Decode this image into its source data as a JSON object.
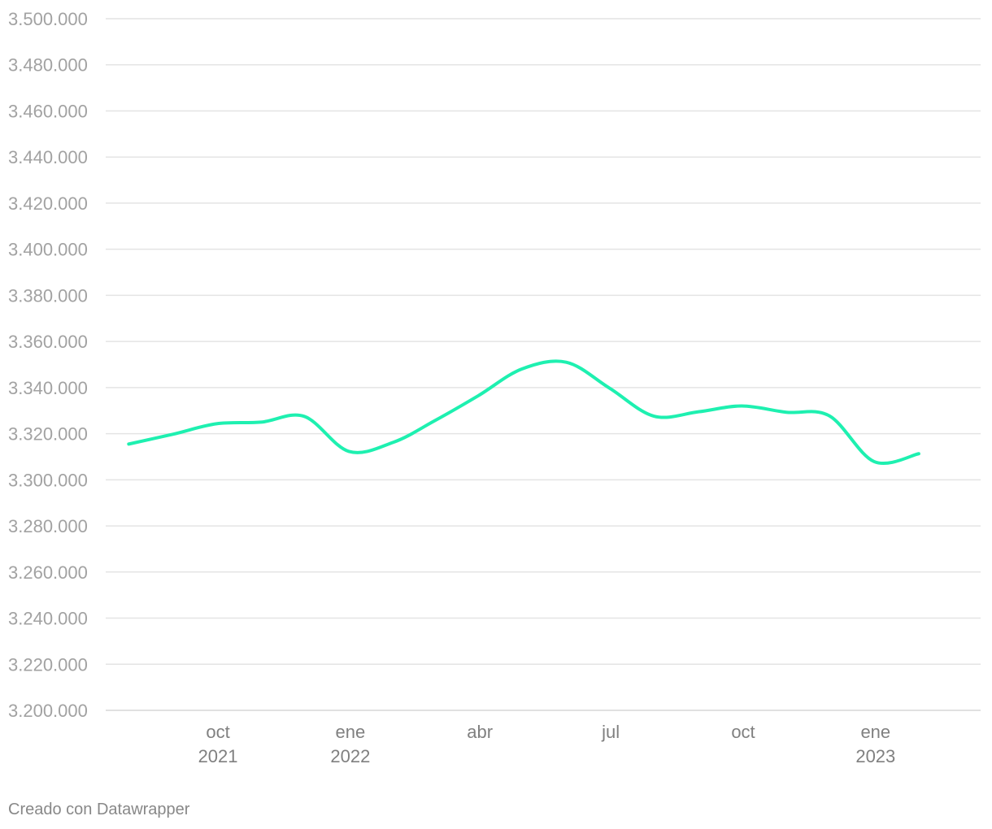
{
  "chart_data": {
    "type": "line",
    "title": "",
    "xlabel": "",
    "ylabel": "",
    "y_ticks": [
      "3.200.000",
      "3.220.000",
      "3.240.000",
      "3.260.000",
      "3.280.000",
      "3.300.000",
      "3.320.000",
      "3.340.000",
      "3.360.000",
      "3.380.000",
      "3.400.000",
      "3.420.000",
      "3.440.000",
      "3.460.000",
      "3.480.000",
      "3.500.000"
    ],
    "ylim": [
      3200000,
      3500000
    ],
    "x_ticks": [
      {
        "date": "2021-10-01",
        "line1": "oct",
        "line2": "2021"
      },
      {
        "date": "2022-01-01",
        "line1": "ene",
        "line2": "2022"
      },
      {
        "date": "2022-04-01",
        "line1": "abr",
        "line2": ""
      },
      {
        "date": "2022-07-01",
        "line1": "jul",
        "line2": ""
      },
      {
        "date": "2022-10-01",
        "line1": "oct",
        "line2": ""
      },
      {
        "date": "2023-01-01",
        "line1": "ene",
        "line2": "2023"
      }
    ],
    "xlim": [
      "2021-07-15",
      "2023-03-15"
    ],
    "grid": true,
    "series": [
      {
        "color": "#1ef0b0",
        "points": [
          {
            "x": "2021-07-31",
            "y": 3315500
          },
          {
            "x": "2021-08-31",
            "y": 3319800
          },
          {
            "x": "2021-09-30",
            "y": 3324300
          },
          {
            "x": "2021-10-31",
            "y": 3325000
          },
          {
            "x": "2021-11-30",
            "y": 3327500
          },
          {
            "x": "2021-12-31",
            "y": 3312300
          },
          {
            "x": "2022-01-31",
            "y": 3316300
          },
          {
            "x": "2022-02-28",
            "y": 3325400
          },
          {
            "x": "2022-03-31",
            "y": 3336500
          },
          {
            "x": "2022-04-30",
            "y": 3348000
          },
          {
            "x": "2022-05-31",
            "y": 3351000
          },
          {
            "x": "2022-06-30",
            "y": 3339800
          },
          {
            "x": "2022-07-31",
            "y": 3327600
          },
          {
            "x": "2022-08-31",
            "y": 3329500
          },
          {
            "x": "2022-09-30",
            "y": 3332000
          },
          {
            "x": "2022-10-31",
            "y": 3329300
          },
          {
            "x": "2022-11-30",
            "y": 3327700
          },
          {
            "x": "2022-12-31",
            "y": 3307900
          },
          {
            "x": "2023-01-31",
            "y": 3311300
          }
        ]
      }
    ]
  },
  "footer": {
    "credit": "Creado con Datawrapper"
  }
}
